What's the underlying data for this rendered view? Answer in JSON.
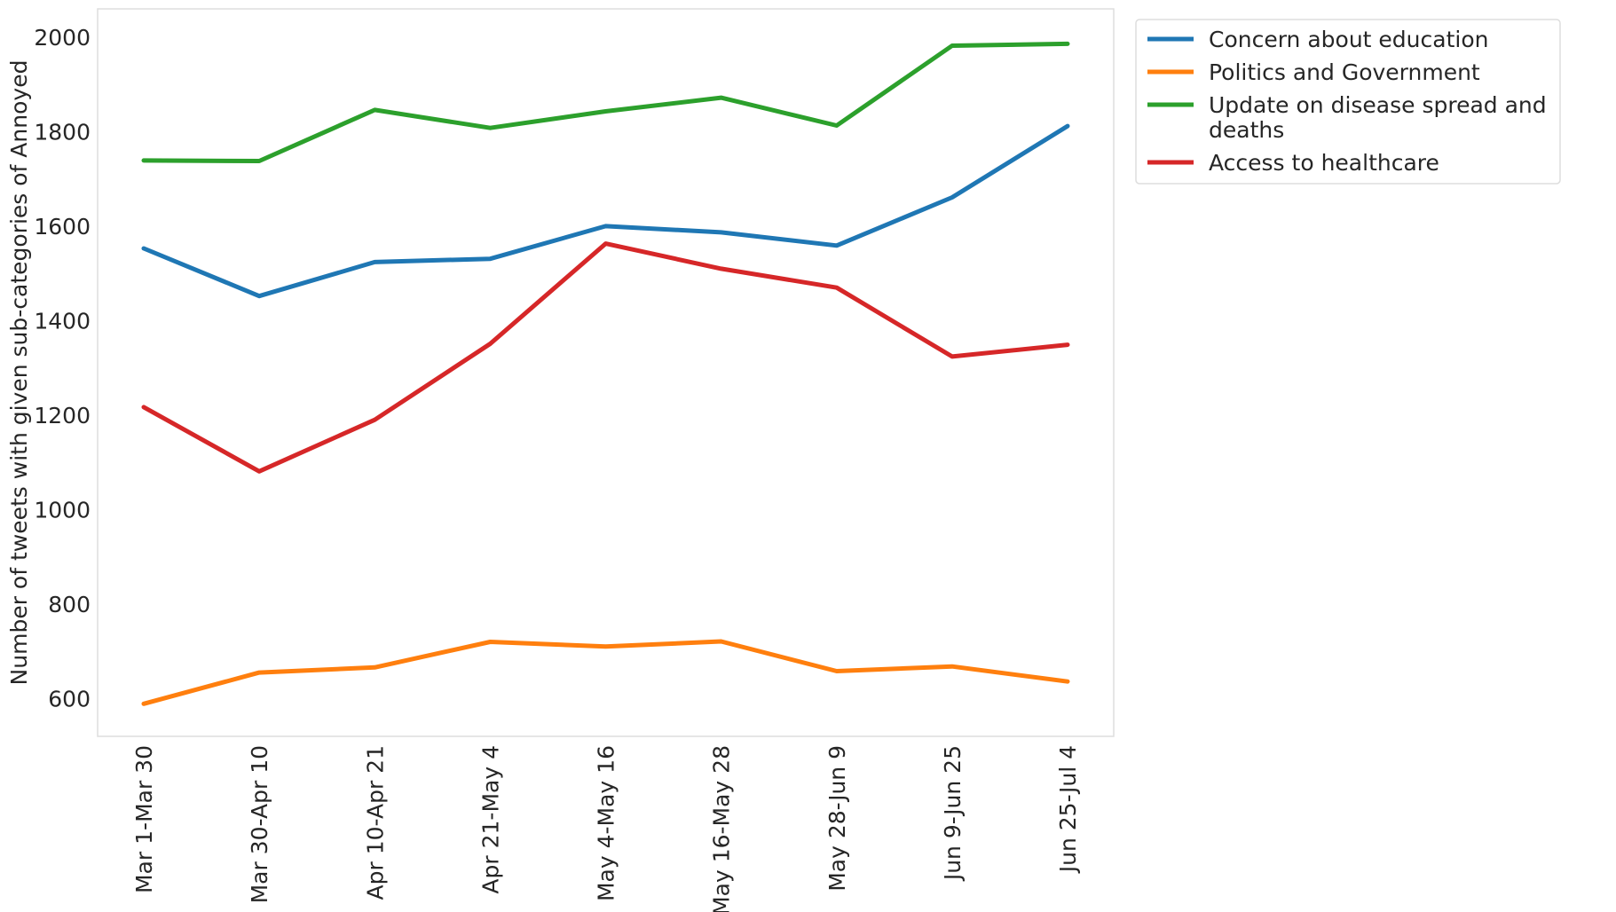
{
  "chart_data": {
    "type": "line",
    "title": "",
    "xlabel": "",
    "ylabel": "Number of tweets with given sub-categories of Annoyed",
    "categories": [
      "Mar 1-Mar 30",
      "Mar 30-Apr 10",
      "Apr 10-Apr 21",
      "Apr 21-May 4",
      "May 4-May 16",
      "May 16-May 28",
      "May 28-Jun 9",
      "Jun 9-Jun 25",
      "Jun 25-Jul 4"
    ],
    "ylim": [
      520,
      2060
    ],
    "yticks": [
      600,
      800,
      1000,
      1200,
      1400,
      1600,
      1800,
      2000
    ],
    "grid": false,
    "legend_position": "outside top-right",
    "series": [
      {
        "name": "Concern about education",
        "color": "#1f77b4",
        "values": [
          1553,
          1452,
          1524,
          1531,
          1600,
          1587,
          1559,
          1661,
          1812
        ]
      },
      {
        "name": "Politics and Government",
        "color": "#ff7f0e",
        "values": [
          589,
          655,
          666,
          720,
          710,
          721,
          658,
          668,
          636
        ]
      },
      {
        "name": "Update on disease spread and deaths",
        "color": "#2ca02c",
        "values": [
          1739,
          1738,
          1846,
          1808,
          1843,
          1872,
          1813,
          1982,
          1986
        ]
      },
      {
        "name": "Access to healthcare",
        "color": "#d62728",
        "values": [
          1217,
          1081,
          1190,
          1351,
          1563,
          1510,
          1470,
          1324,
          1349
        ]
      }
    ]
  }
}
